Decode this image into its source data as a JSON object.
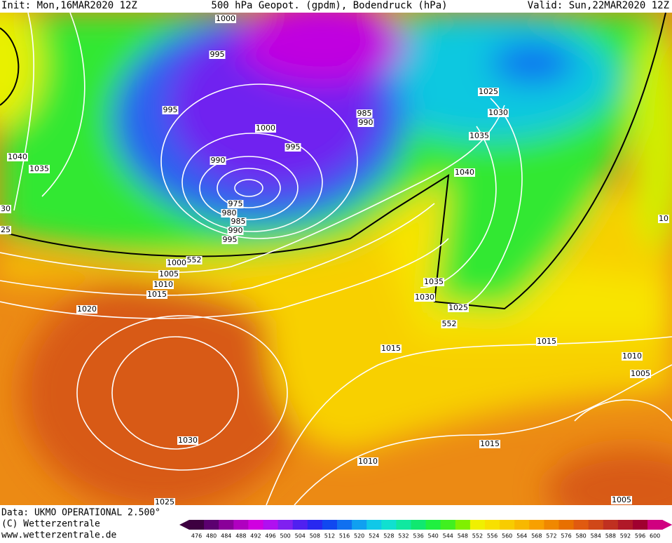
{
  "header": {
    "init": "Init: Mon,16MAR2020 12Z",
    "title": "500 hPa Geopot. (gpdm), Bodendruck (hPa)",
    "valid": "Valid: Sun,22MAR2020 12Z"
  },
  "map": {
    "isobar_labels": [
      "1000",
      "995",
      "995",
      "1040",
      "1035",
      "30",
      "25",
      "990",
      "1000",
      "995",
      "985",
      "990",
      "1025",
      "1030",
      "1035",
      "1040",
      "975",
      "980",
      "985",
      "990",
      "995",
      "1000",
      "552",
      "1005",
      "1010",
      "1015",
      "1020",
      "1035",
      "1030",
      "1025",
      "552",
      "1015",
      "1015",
      "1010",
      "1005",
      "1030",
      "1015",
      "1010",
      "1005",
      "1025",
      "10"
    ]
  },
  "footer": {
    "source": "Data: UKMO OPERATIONAL 2.500°",
    "copyright": "(C) Wetterzentrale",
    "url": "www.wetterzentrale.de"
  },
  "scale": {
    "values": [
      476,
      480,
      484,
      488,
      492,
      496,
      500,
      504,
      508,
      512,
      516,
      520,
      524,
      528,
      532,
      536,
      540,
      544,
      548,
      552,
      556,
      560,
      564,
      568,
      572,
      576,
      580,
      584,
      588,
      592,
      596,
      600
    ],
    "colors": [
      "#3d0040",
      "#5c0070",
      "#8a0099",
      "#b000c0",
      "#d000e0",
      "#b010f0",
      "#8020f0",
      "#5020f0",
      "#2828f0",
      "#1048f0",
      "#1070f0",
      "#10a0f0",
      "#10c8e8",
      "#10e0d0",
      "#10e8a0",
      "#10e870",
      "#20f040",
      "#40f020",
      "#80f000",
      "#f0f000",
      "#f8e000",
      "#f8cc00",
      "#f8b800",
      "#f8a000",
      "#f08800",
      "#e87000",
      "#e05a10",
      "#d04818",
      "#c03020",
      "#b01828",
      "#a00030",
      "#d00080"
    ]
  }
}
